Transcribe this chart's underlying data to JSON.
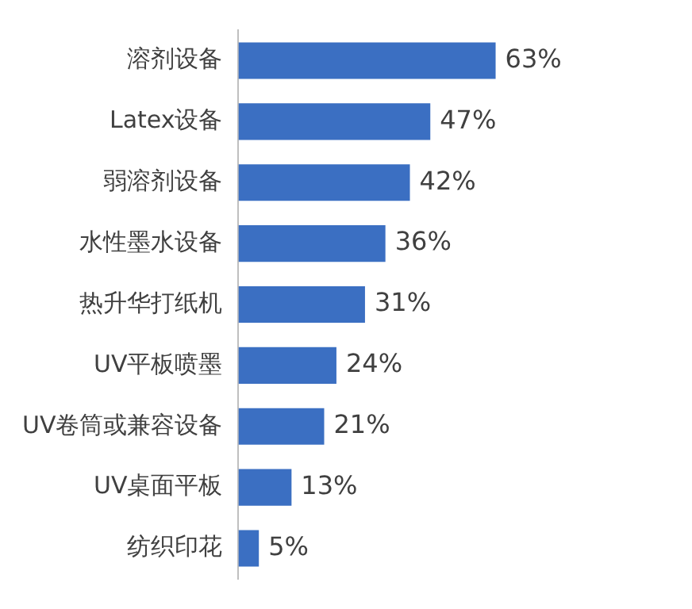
{
  "chart_data": {
    "type": "bar",
    "orientation": "horizontal",
    "categories": [
      "溶剂设备",
      "Latex设备",
      "弱溶剂设备",
      "水性墨水设备",
      "热升华打纸机",
      "UV平板喷墨",
      "UV卷筒或兼容设备",
      "UV桌面平板",
      "纺织印花"
    ],
    "values": [
      63,
      47,
      42,
      36,
      31,
      24,
      21,
      13,
      5
    ],
    "value_labels": [
      "63%",
      "47%",
      "42%",
      "36%",
      "31%",
      "24%",
      "21%",
      "13%",
      "5%"
    ],
    "color": "#3b6fc2"
  }
}
